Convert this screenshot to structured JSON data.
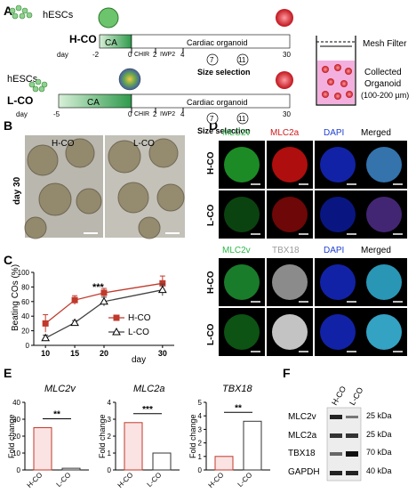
{
  "panels": [
    "A",
    "B",
    "C",
    "D",
    "E",
    "F"
  ],
  "panel_a": {
    "rows": [
      {
        "label": "H-CO",
        "cells_label": "hESCs",
        "ca": "CA",
        "cardiac": "Cardiac organoid",
        "days": [
          "-2",
          "0",
          "2",
          "4",
          "7",
          "11",
          "30"
        ],
        "day_word": "day"
      },
      {
        "label": "L-CO",
        "cells_label": "hESCs",
        "ca": "CA",
        "cardiac": "Cardiac organoid",
        "days": [
          "-5",
          "0",
          "2",
          "4",
          "7",
          "11",
          "30"
        ],
        "day_word": "day"
      }
    ],
    "chir": "CHIR",
    "iwp2": "IWP2",
    "size_selection": "Size selection",
    "mesh_filter": "Mesh Filter",
    "collected": "Collected",
    "organoid": "Organoid",
    "size_range": "(100-200 µm)"
  },
  "panel_b": {
    "h_label": "H-CO",
    "l_label": "L-CO",
    "day": "day 30"
  },
  "panel_d": {
    "top_headers": [
      "MLC2v",
      "MLC2a",
      "DAPI",
      "Merged"
    ],
    "bottom_headers": [
      "MLC2v",
      "TBX18",
      "DAPI",
      "Merged"
    ],
    "header_colors": [
      "#2db84a",
      "#d11a1a",
      "#1f3fd1",
      "#000000"
    ],
    "bottom_header_colors": [
      "#2db84a",
      "#9a9a9a",
      "#1f3fd1",
      "#000000"
    ],
    "row_labels": [
      "H-CO",
      "L-CO",
      "H-CO",
      "L-CO"
    ]
  },
  "chart_data": [
    {
      "type": "line",
      "ylabel": "Beating COs (%)",
      "xlabel": "day",
      "x": [
        10,
        15,
        20,
        30
      ],
      "xticks": [
        "10",
        "15",
        "20",
        "30"
      ],
      "ylim": [
        0,
        100
      ],
      "yticks": [
        "0",
        "20",
        "40",
        "60",
        "80",
        "100"
      ],
      "annotation": "***",
      "series": [
        {
          "name": "H-CO",
          "values": [
            30,
            62,
            72,
            85
          ],
          "err": [
            12,
            6,
            6,
            10
          ],
          "color": "#c0392b"
        },
        {
          "name": "L-CO",
          "values": [
            10,
            31,
            60,
            76
          ],
          "err": [
            4,
            3,
            6,
            8
          ],
          "color": "#444444"
        }
      ]
    },
    {
      "type": "bar",
      "title": "MLC2v",
      "ylabel": "Fold change",
      "categories": [
        "H-CO",
        "L-CO"
      ],
      "values": [
        25,
        1
      ],
      "ylim": [
        0,
        40
      ],
      "yticks": [
        "0",
        "10",
        "20",
        "30",
        "40"
      ],
      "annotation": "**"
    },
    {
      "type": "bar",
      "title": "MLC2a",
      "ylabel": "Fold change",
      "categories": [
        "H-CO",
        "L-CO"
      ],
      "values": [
        2.8,
        1
      ],
      "ylim": [
        0,
        4
      ],
      "yticks": [
        "0",
        "1",
        "2",
        "3",
        "4"
      ],
      "annotation": "***"
    },
    {
      "type": "bar",
      "title": "TBX18",
      "ylabel": "Fold change",
      "categories": [
        "H-CO",
        "L-CO"
      ],
      "values": [
        1,
        3.6
      ],
      "ylim": [
        0,
        5
      ],
      "yticks": [
        "0",
        "1",
        "2",
        "3",
        "4",
        "5"
      ],
      "annotation": "**"
    }
  ],
  "panel_f": {
    "lanes": [
      "H-CO",
      "L-CO"
    ],
    "proteins": [
      "MLC2v",
      "MLC2a",
      "TBX18",
      "GAPDH"
    ],
    "markers": [
      "25 kDa",
      "25 kDa",
      "70 kDa",
      "40 kDa"
    ]
  }
}
